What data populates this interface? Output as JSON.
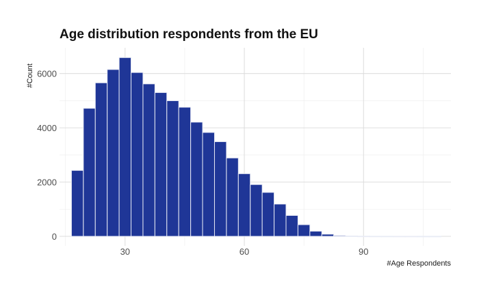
{
  "chart_data": {
    "type": "bar",
    "title": "Age distribution respondents from the EU",
    "xlabel": "#Age Respondents",
    "ylabel": "#Count",
    "xlim": [
      13.5,
      112
    ],
    "ylim": [
      -350,
      6950
    ],
    "x_ticks": [
      30,
      60,
      90
    ],
    "y_ticks": [
      0,
      2000,
      4000,
      6000
    ],
    "grid": true,
    "bin_width": 3,
    "bins": [
      {
        "x0": 16.5,
        "x1": 19.5,
        "count": 2430
      },
      {
        "x0": 19.5,
        "x1": 22.5,
        "count": 4720
      },
      {
        "x0": 22.5,
        "x1": 25.5,
        "count": 5660
      },
      {
        "x0": 25.5,
        "x1": 28.5,
        "count": 6150
      },
      {
        "x0": 28.5,
        "x1": 31.5,
        "count": 6590
      },
      {
        "x0": 31.5,
        "x1": 34.5,
        "count": 6040
      },
      {
        "x0": 34.5,
        "x1": 37.5,
        "count": 5620
      },
      {
        "x0": 37.5,
        "x1": 40.5,
        "count": 5300
      },
      {
        "x0": 40.5,
        "x1": 43.5,
        "count": 5000
      },
      {
        "x0": 43.5,
        "x1": 46.5,
        "count": 4760
      },
      {
        "x0": 46.5,
        "x1": 49.5,
        "count": 4210
      },
      {
        "x0": 49.5,
        "x1": 52.5,
        "count": 3830
      },
      {
        "x0": 52.5,
        "x1": 55.5,
        "count": 3490
      },
      {
        "x0": 55.5,
        "x1": 58.5,
        "count": 2890
      },
      {
        "x0": 58.5,
        "x1": 61.5,
        "count": 2310
      },
      {
        "x0": 61.5,
        "x1": 64.5,
        "count": 1910
      },
      {
        "x0": 64.5,
        "x1": 67.5,
        "count": 1620
      },
      {
        "x0": 67.5,
        "x1": 70.5,
        "count": 1190
      },
      {
        "x0": 70.5,
        "x1": 73.5,
        "count": 770
      },
      {
        "x0": 73.5,
        "x1": 76.5,
        "count": 430
      },
      {
        "x0": 76.5,
        "x1": 79.5,
        "count": 190
      },
      {
        "x0": 79.5,
        "x1": 82.5,
        "count": 80
      },
      {
        "x0": 82.5,
        "x1": 85.5,
        "count": 30
      },
      {
        "x0": 85.5,
        "x1": 88.5,
        "count": 12
      },
      {
        "x0": 88.5,
        "x1": 91.5,
        "count": 6
      },
      {
        "x0": 91.5,
        "x1": 94.5,
        "count": 4
      },
      {
        "x0": 94.5,
        "x1": 97.5,
        "count": 3
      },
      {
        "x0": 97.5,
        "x1": 100.5,
        "count": 2
      },
      {
        "x0": 100.5,
        "x1": 103.5,
        "count": 2
      },
      {
        "x0": 103.5,
        "x1": 106.5,
        "count": 1
      },
      {
        "x0": 106.5,
        "x1": 109.5,
        "count": 1
      }
    ],
    "colors": {
      "bar_fill": "#1f3697",
      "bar_outline": "#e8ebf5",
      "grid": "#d9d9d9"
    }
  }
}
